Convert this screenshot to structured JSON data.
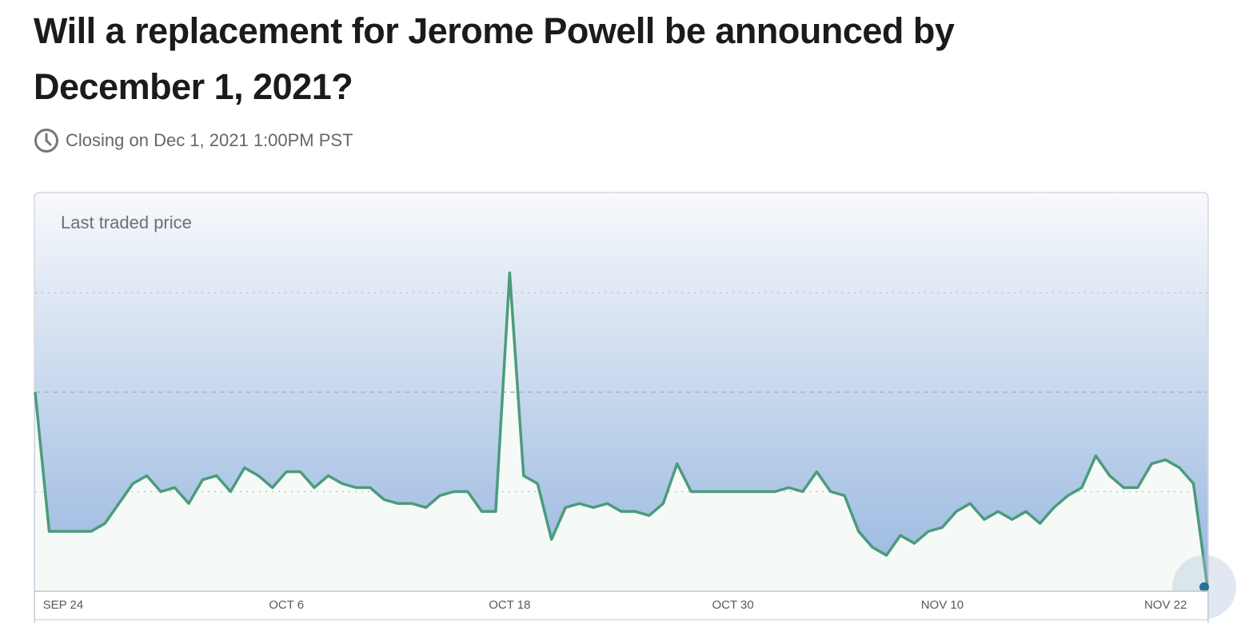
{
  "header": {
    "title": "Will a replacement for Jerome Powell be announced by December 1, 2021?",
    "closing": "Closing on Dec 1, 2021 1:00PM PST"
  },
  "chart_data": {
    "type": "line",
    "title": "Last traded price",
    "categories": [
      null,
      null,
      "SEP 24",
      null,
      null,
      null,
      null,
      null,
      null,
      null,
      null,
      null,
      null,
      null,
      null,
      null,
      null,
      null,
      "OCT 6",
      null,
      null,
      null,
      null,
      null,
      null,
      null,
      null,
      null,
      null,
      null,
      null,
      null,
      null,
      null,
      "OCT 18",
      null,
      null,
      null,
      null,
      null,
      null,
      null,
      null,
      null,
      null,
      null,
      null,
      null,
      null,
      null,
      "OCT 30",
      null,
      null,
      null,
      null,
      null,
      null,
      null,
      null,
      null,
      null,
      null,
      null,
      null,
      null,
      "NOV 10",
      null,
      null,
      null,
      null,
      null,
      null,
      null,
      null,
      null,
      null,
      null,
      null,
      null,
      null,
      null,
      "NOV 22",
      null,
      null,
      null
    ],
    "values": [
      50,
      15,
      15,
      15,
      15,
      17,
      22,
      27,
      29,
      25,
      26,
      22,
      28,
      29,
      25,
      31,
      29,
      26,
      30,
      30,
      26,
      29,
      27,
      26,
      26,
      23,
      22,
      22,
      21,
      24,
      25,
      25,
      20,
      20,
      80,
      29,
      27,
      13,
      21,
      22,
      21,
      22,
      20,
      20,
      19,
      22,
      32,
      25,
      25,
      25,
      25,
      25,
      25,
      25,
      26,
      25,
      30,
      25,
      24,
      15,
      11,
      9,
      14,
      12,
      15,
      16,
      20,
      22,
      18,
      20,
      18,
      20,
      17,
      21,
      24,
      26,
      34,
      29,
      26,
      26,
      32,
      33,
      31,
      27,
      1
    ],
    "color": "#4b9b7c",
    "ylim": [
      0,
      100
    ],
    "yticks": [
      25,
      50,
      75
    ],
    "grid": true
  }
}
